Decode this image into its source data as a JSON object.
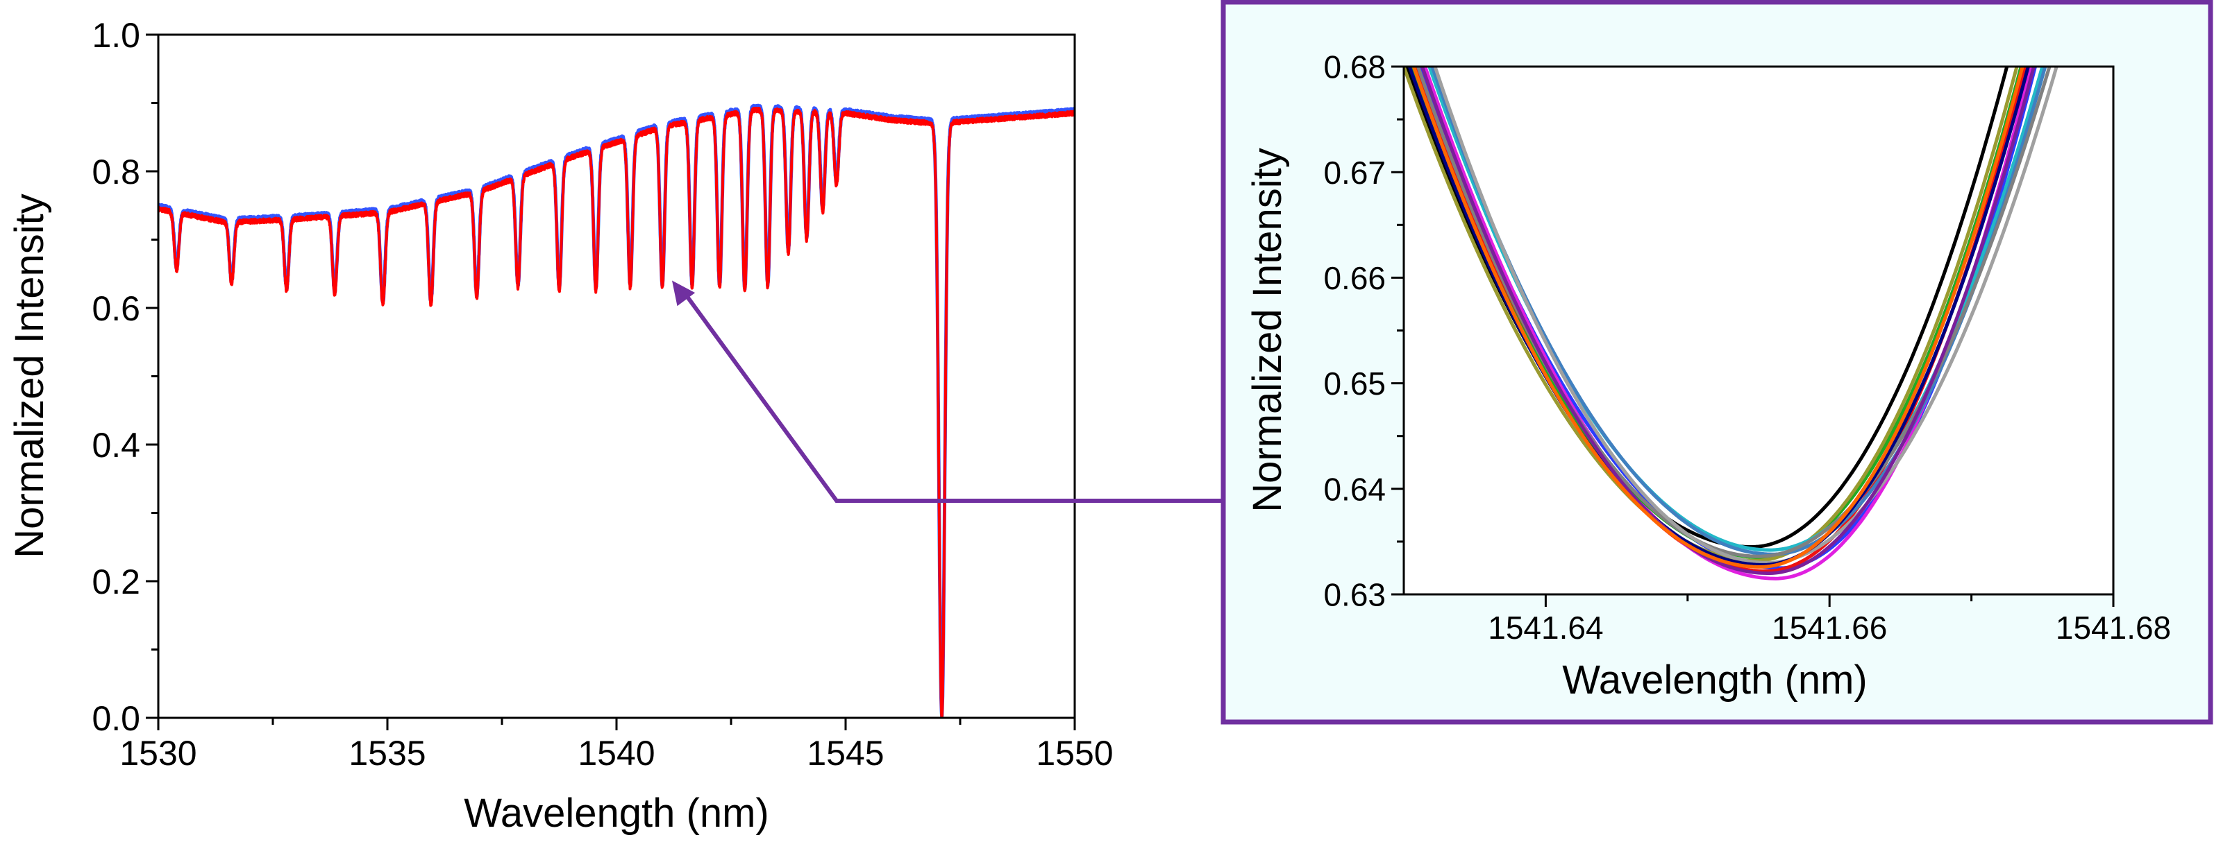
{
  "chart_data": [
    {
      "type": "line",
      "panel": "main",
      "xlabel": "Wavelength (nm)",
      "ylabel": "Normalized Intensity",
      "xlim": [
        1530,
        1550
      ],
      "ylim": [
        0.0,
        1.0
      ],
      "xticks": [
        1530,
        1535,
        1540,
        1545,
        1550
      ],
      "xtick_labels": [
        "1530",
        "1535",
        "1540",
        "1545",
        "1550"
      ],
      "yticks": [
        0.0,
        0.2,
        0.4,
        0.6,
        0.8,
        1.0
      ],
      "ytick_labels": [
        "0.0",
        "0.2",
        "0.4",
        "0.6",
        "0.8",
        "1.0"
      ],
      "baseline": [
        [
          1530,
          0.745
        ],
        [
          1531.5,
          0.725
        ],
        [
          1533,
          0.73
        ],
        [
          1535,
          0.74
        ],
        [
          1537,
          0.77
        ],
        [
          1539,
          0.82
        ],
        [
          1541,
          0.865
        ],
        [
          1543,
          0.89
        ],
        [
          1545,
          0.885
        ],
        [
          1546,
          0.875
        ],
        [
          1547,
          0.87
        ],
        [
          1548,
          0.875
        ],
        [
          1550,
          0.885
        ]
      ],
      "dips": [
        {
          "x": 1530.4,
          "y": 0.655
        },
        {
          "x": 1531.6,
          "y": 0.635
        },
        {
          "x": 1532.8,
          "y": 0.625
        },
        {
          "x": 1533.85,
          "y": 0.62
        },
        {
          "x": 1534.9,
          "y": 0.605
        },
        {
          "x": 1535.95,
          "y": 0.605
        },
        {
          "x": 1536.95,
          "y": 0.615
        },
        {
          "x": 1537.85,
          "y": 0.63
        },
        {
          "x": 1538.75,
          "y": 0.625
        },
        {
          "x": 1539.55,
          "y": 0.625
        },
        {
          "x": 1540.3,
          "y": 0.63
        },
        {
          "x": 1541.0,
          "y": 0.63
        },
        {
          "x": 1541.65,
          "y": 0.63
        },
        {
          "x": 1542.25,
          "y": 0.63
        },
        {
          "x": 1542.8,
          "y": 0.625
        },
        {
          "x": 1543.3,
          "y": 0.63
        },
        {
          "x": 1543.75,
          "y": 0.68
        },
        {
          "x": 1544.15,
          "y": 0.7
        },
        {
          "x": 1544.5,
          "y": 0.74
        },
        {
          "x": 1544.8,
          "y": 0.78
        },
        {
          "x": 1547.1,
          "y": 0.0
        }
      ],
      "series": [
        {
          "name": "blue",
          "color": "#3355ff"
        },
        {
          "name": "red",
          "color": "#ff0000"
        }
      ],
      "annotation": {
        "type": "arrow",
        "x": 1541.0,
        "y": 0.63,
        "target": "inset"
      }
    },
    {
      "type": "line",
      "panel": "inset",
      "xlabel": "Wavelength (nm)",
      "ylabel": "Normalized Intensity",
      "xlim": [
        1541.63,
        1541.68
      ],
      "ylim": [
        0.63,
        0.68
      ],
      "xticks": [
        1541.64,
        1541.66,
        1541.68
      ],
      "xtick_labels": [
        "1541.64",
        "1541.66",
        "1541.68"
      ],
      "yticks": [
        0.63,
        0.64,
        0.65,
        0.66,
        0.67,
        0.68
      ],
      "ytick_labels": [
        "0.63",
        "0.64",
        "0.65",
        "0.66",
        "0.67",
        "0.68"
      ],
      "series": [
        {
          "name": "s1",
          "color": "#000000",
          "center": 1541.6545,
          "min": 0.6345,
          "left_edge": 1541.6302,
          "right_edge": 1541.6725
        },
        {
          "name": "s2",
          "color": "#2a3cff",
          "center": 1541.6565,
          "min": 0.6325,
          "left_edge": 1541.6312,
          "right_edge": 1541.6745
        },
        {
          "name": "s3",
          "color": "#ee1111",
          "center": 1541.6555,
          "min": 0.6322,
          "left_edge": 1541.6308,
          "right_edge": 1541.6738
        },
        {
          "name": "s4",
          "color": "#e020e0",
          "center": 1541.6562,
          "min": 0.6315,
          "left_edge": 1541.6315,
          "right_edge": 1541.6742
        },
        {
          "name": "s5",
          "color": "#22aa22",
          "center": 1541.6552,
          "min": 0.6335,
          "left_edge": 1541.6305,
          "right_edge": 1541.6735
        },
        {
          "name": "s6",
          "color": "#9a9a30",
          "center": 1541.6548,
          "min": 0.6332,
          "left_edge": 1541.63,
          "right_edge": 1541.6732
        },
        {
          "name": "s7",
          "color": "#22b8c8",
          "center": 1541.6558,
          "min": 0.6342,
          "left_edge": 1541.6318,
          "right_edge": 1541.675
        },
        {
          "name": "s8",
          "color": "#4080c0",
          "center": 1541.656,
          "min": 0.6338,
          "left_edge": 1541.632,
          "right_edge": 1541.6752
        },
        {
          "name": "s9",
          "color": "#808080",
          "center": 1541.655,
          "min": 0.6336,
          "left_edge": 1541.631,
          "right_edge": 1541.6755
        },
        {
          "name": "s10",
          "color": "#a0a0a0",
          "center": 1541.6556,
          "min": 0.633,
          "left_edge": 1541.6322,
          "right_edge": 1541.676
        },
        {
          "name": "s11",
          "color": "#000080",
          "center": 1541.6553,
          "min": 0.6328,
          "left_edge": 1541.6304,
          "right_edge": 1541.674
        },
        {
          "name": "s12",
          "color": "#7a1f9a",
          "center": 1541.6557,
          "min": 0.632,
          "left_edge": 1541.6313,
          "right_edge": 1541.6744
        },
        {
          "name": "s13",
          "color": "#ff6600",
          "center": 1541.6551,
          "min": 0.6326,
          "left_edge": 1541.6307,
          "right_edge": 1541.6736
        }
      ]
    }
  ],
  "colors": {
    "main_trace": "#ff0000",
    "underlay_trace": "#3355ff",
    "inset_border": "#7030a0",
    "inset_background": "#f0fdfd",
    "arrow": "#7030a0",
    "axis": "#000000"
  }
}
